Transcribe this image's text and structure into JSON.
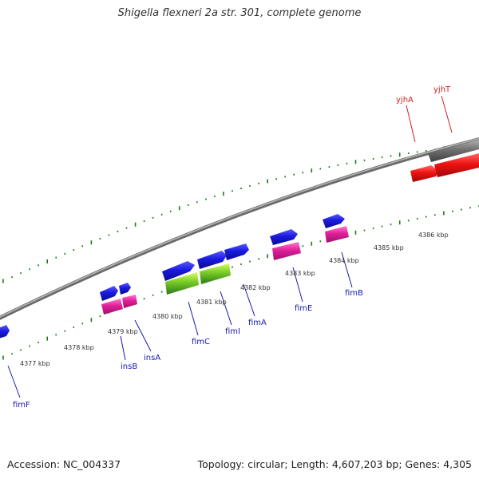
{
  "title": "Shigella flexneri 2a str. 301, complete genome",
  "footer": {
    "accession": "Accession: NC_004337",
    "summary": "Topology: circular; Length: 4,607,203 bp; Genes: 4,305"
  },
  "colors": {
    "backbone": "#808080",
    "tick": "#1a7a1a",
    "gene_blue": "#1a1ad9",
    "gene_magenta": "#e0209a",
    "gene_green": "#6ecf2a",
    "gene_red": "#ee1111",
    "gene_gray": "#777777",
    "label_blue": "#1a1aa8",
    "label_red": "#cc2222"
  },
  "tick_labels": [
    "4377 kbp",
    "4378 kbp",
    "4379 kbp",
    "4380 kbp",
    "4381 kbp",
    "4382 kbp",
    "4383 kbp",
    "4384 kbp",
    "4385 kbp",
    "4386 kbp"
  ],
  "genes": [
    {
      "name": "fimF",
      "color": "label_blue"
    },
    {
      "name": "insB",
      "color": "label_blue"
    },
    {
      "name": "insA",
      "color": "label_blue"
    },
    {
      "name": "fimC",
      "color": "label_blue"
    },
    {
      "name": "fimI",
      "color": "label_blue"
    },
    {
      "name": "fimA",
      "color": "label_blue"
    },
    {
      "name": "fimE",
      "color": "label_blue"
    },
    {
      "name": "fimB",
      "color": "label_blue"
    },
    {
      "name": "yjhA",
      "color": "label_red"
    },
    {
      "name": "yjhT",
      "color": "label_red"
    }
  ]
}
